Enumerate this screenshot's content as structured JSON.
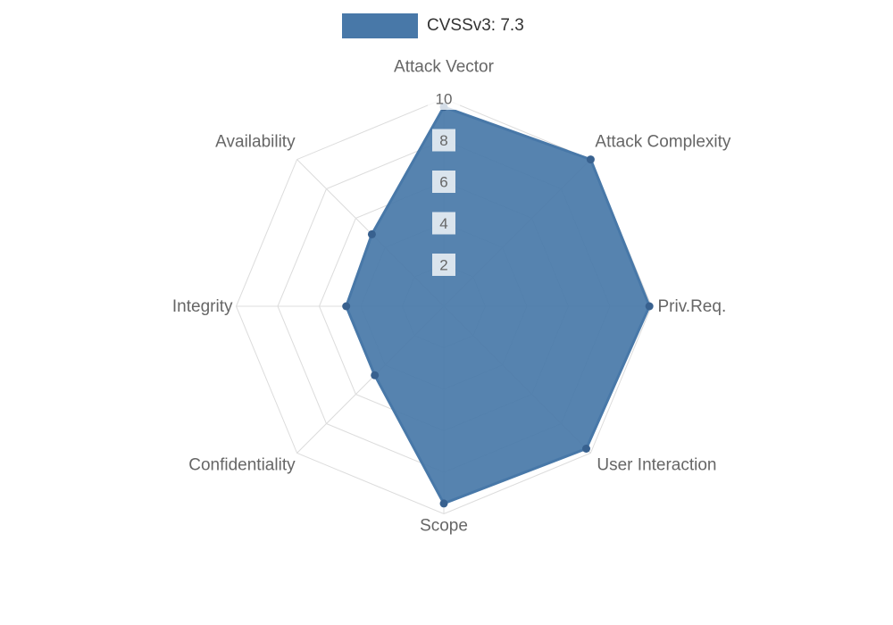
{
  "chart_data": {
    "type": "radar",
    "title": "",
    "categories": [
      "Attack Vector",
      "Attack Complexity",
      "Priv.Req.",
      "User Interaction",
      "Scope",
      "Confidentiality",
      "Integrity",
      "Availability"
    ],
    "series": [
      {
        "name": "CVSSv3: 7.3",
        "values": [
          9.6,
          10,
          9.9,
          9.7,
          9.5,
          4.7,
          4.7,
          4.9
        ]
      }
    ],
    "ticks": [
      2,
      4,
      6,
      8,
      10
    ],
    "rlim": [
      0,
      10
    ],
    "grid": true,
    "legend_position": "top",
    "colors": {
      "series_fill": "#4878a8",
      "series_point": "#38618f",
      "grid": "#dcdcdc",
      "axis_label": "#666666",
      "tick_label": "#666666",
      "tick_backdrop": "rgba(255,255,255,0.78)",
      "legend_text": "#333333"
    }
  }
}
